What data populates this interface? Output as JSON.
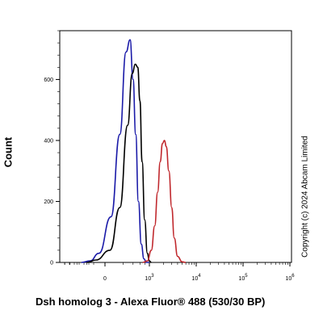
{
  "chart_data": {
    "type": "line",
    "title": "",
    "xlabel": "Dsh homolog 3 - Alexa Fluor® 488 (530/30 BP)",
    "ylabel": "Count",
    "x_scale": "biexponential",
    "x_ticks": [
      {
        "value": 0,
        "base": "0",
        "exp": ""
      },
      {
        "value": 1000,
        "base": "10",
        "exp": "3"
      },
      {
        "value": 10000,
        "base": "10",
        "exp": "4"
      },
      {
        "value": 100000,
        "base": "10",
        "exp": "5"
      },
      {
        "value": 1000000,
        "base": "10",
        "exp": "6"
      }
    ],
    "y_ticks": [
      "0",
      "200",
      "400",
      "600"
    ],
    "ylim": [
      0,
      760
    ],
    "grid": false,
    "series": [
      {
        "color": "#1a1aa8",
        "x": [
          -300,
          -150,
          -50,
          50,
          150,
          250,
          330,
          400,
          470,
          550,
          650,
          750,
          850,
          1000
        ],
        "y": [
          0,
          5,
          30,
          150,
          420,
          690,
          730,
          600,
          420,
          200,
          60,
          12,
          0,
          0
        ]
      },
      {
        "color": "#000000",
        "x": [
          -200,
          -80,
          40,
          150,
          280,
          380,
          460,
          530,
          600,
          680,
          780,
          900,
          1000,
          1100
        ],
        "y": [
          0,
          8,
          40,
          180,
          450,
          620,
          650,
          640,
          530,
          330,
          140,
          30,
          5,
          0
        ]
      },
      {
        "color": "#c0282d",
        "x": [
          700,
          900,
          1100,
          1300,
          1500,
          1700,
          1900,
          2100,
          2300,
          2600,
          3000,
          3400,
          4000,
          5000,
          6000
        ],
        "y": [
          0,
          5,
          40,
          120,
          230,
          330,
          390,
          400,
          380,
          300,
          180,
          80,
          20,
          2,
          0
        ]
      }
    ]
  },
  "copyright": "Copyright (c) 2024 Abcam Limited"
}
